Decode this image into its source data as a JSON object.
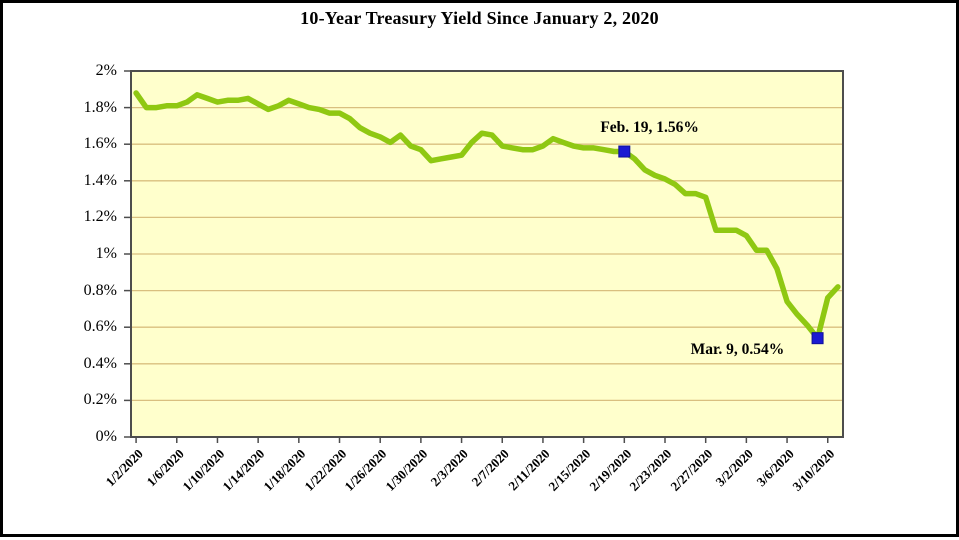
{
  "title": "10-Year Treasury Yield Since January 2, 2020",
  "colors": {
    "page_bg": "#ffffff",
    "outer_border": "#000000",
    "plot_bg": "#ffffcc",
    "gridline": "#d9bf7f",
    "plot_border": "#4d4d4d",
    "line": "#8fc812",
    "marker": "#1a1ad2",
    "text": "#000000"
  },
  "chart_data": {
    "type": "line",
    "title": "10-Year Treasury Yield Since January 2, 2020",
    "series_name": "10-Year Treasury Yield",
    "xlabel": "",
    "ylabel": "",
    "ylim": [
      0,
      2
    ],
    "grid": "horizontal",
    "legend_position": "none",
    "y_ticks": {
      "values": [
        2,
        1.8,
        1.6,
        1.4,
        1.2,
        1,
        0.8,
        0.6,
        0.4,
        0.2,
        0
      ],
      "labels": [
        "2%",
        "1.8%",
        "1.6%",
        "1.4%",
        "1.2%",
        "1%",
        "0.8%",
        "0.6%",
        "0.4%",
        "0.2%",
        "0%"
      ]
    },
    "x_tick_interval": 4,
    "x_tick_labels": [
      "1/2/2020",
      "1/6/2020",
      "1/10/2020",
      "1/14/2020",
      "1/18/2020",
      "1/22/2020",
      "1/26/2020",
      "1/30/2020",
      "2/3/2020",
      "2/7/2020",
      "2/11/2020",
      "2/15/2020",
      "2/19/2020",
      "2/23/2020",
      "2/27/2020",
      "3/2/2020",
      "3/6/2020",
      "3/10/2020"
    ],
    "x": [
      "1/2/2020",
      "1/3/2020",
      "1/4/2020",
      "1/5/2020",
      "1/6/2020",
      "1/7/2020",
      "1/8/2020",
      "1/9/2020",
      "1/10/2020",
      "1/11/2020",
      "1/12/2020",
      "1/13/2020",
      "1/14/2020",
      "1/15/2020",
      "1/16/2020",
      "1/17/2020",
      "1/18/2020",
      "1/19/2020",
      "1/20/2020",
      "1/21/2020",
      "1/22/2020",
      "1/23/2020",
      "1/24/2020",
      "1/25/2020",
      "1/26/2020",
      "1/27/2020",
      "1/28/2020",
      "1/29/2020",
      "1/30/2020",
      "1/31/2020",
      "2/1/2020",
      "2/2/2020",
      "2/3/2020",
      "2/4/2020",
      "2/5/2020",
      "2/6/2020",
      "2/7/2020",
      "2/8/2020",
      "2/9/2020",
      "2/10/2020",
      "2/11/2020",
      "2/12/2020",
      "2/13/2020",
      "2/14/2020",
      "2/15/2020",
      "2/16/2020",
      "2/17/2020",
      "2/18/2020",
      "2/19/2020",
      "2/20/2020",
      "2/21/2020",
      "2/22/2020",
      "2/23/2020",
      "2/24/2020",
      "2/25/2020",
      "2/26/2020",
      "2/27/2020",
      "2/28/2020",
      "2/29/2020",
      "3/1/2020",
      "3/2/2020",
      "3/3/2020",
      "3/4/2020",
      "3/5/2020",
      "3/6/2020",
      "3/7/2020",
      "3/8/2020",
      "3/9/2020",
      "3/10/2020",
      "3/11/2020"
    ],
    "values": [
      1.88,
      1.8,
      1.8,
      1.81,
      1.81,
      1.83,
      1.87,
      1.85,
      1.83,
      1.84,
      1.84,
      1.85,
      1.82,
      1.79,
      1.81,
      1.84,
      1.82,
      1.8,
      1.79,
      1.77,
      1.77,
      1.74,
      1.69,
      1.66,
      1.64,
      1.61,
      1.65,
      1.59,
      1.57,
      1.51,
      1.52,
      1.53,
      1.54,
      1.61,
      1.66,
      1.65,
      1.59,
      1.58,
      1.57,
      1.57,
      1.59,
      1.63,
      1.61,
      1.59,
      1.58,
      1.58,
      1.57,
      1.56,
      1.56,
      1.52,
      1.46,
      1.43,
      1.41,
      1.38,
      1.33,
      1.33,
      1.31,
      1.13,
      1.13,
      1.13,
      1.1,
      1.02,
      1.02,
      0.92,
      0.74,
      0.67,
      0.61,
      0.54,
      0.76,
      0.82
    ],
    "annotations": [
      {
        "label": "Feb. 19, 1.56%",
        "date": "2/19/2020",
        "value": 1.56
      },
      {
        "label": "Mar. 9, 0.54%",
        "date": "3/9/2020",
        "value": 0.54
      }
    ]
  }
}
